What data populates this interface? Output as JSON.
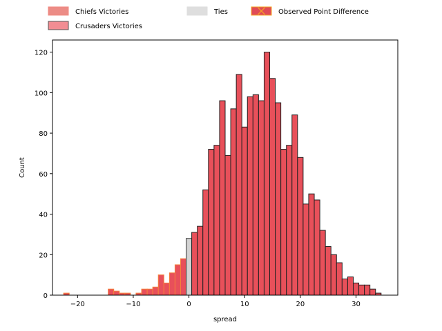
{
  "chart_data": {
    "type": "bar",
    "xlabel": "spread",
    "ylabel": "Count",
    "xlim": [
      -24.5,
      37.5
    ],
    "ylim": [
      0,
      126
    ],
    "xticks": [
      -20,
      -10,
      0,
      10,
      20,
      30
    ],
    "yticks": [
      0,
      20,
      40,
      60,
      80,
      100,
      120
    ],
    "legend": {
      "placement": "top",
      "entries": [
        {
          "label": "Chiefs Victories",
          "fill": "#ec8c86",
          "edge": "#f08a80",
          "marker": "none"
        },
        {
          "label": "Crusaders Victories",
          "fill": "#f28d93",
          "edge": "#555555",
          "marker": "none"
        },
        {
          "label": "Ties",
          "fill": "#dedede",
          "edge": "#dedede",
          "marker": "none"
        },
        {
          "label": "Observed Point Difference",
          "fill": "#e04b55",
          "edge": "#f5a623",
          "marker": "x"
        }
      ]
    },
    "bin_width": 1,
    "series": [
      {
        "name": "Chiefs Victories",
        "fill": "#e8505a",
        "edge": "#f5823c",
        "bins": [
          {
            "x": -22,
            "count": 1
          },
          {
            "x": -14,
            "count": 3
          },
          {
            "x": -13,
            "count": 2
          },
          {
            "x": -12,
            "count": 1
          },
          {
            "x": -11,
            "count": 1
          },
          {
            "x": -9,
            "count": 1
          },
          {
            "x": -8,
            "count": 3
          },
          {
            "x": -7,
            "count": 3
          },
          {
            "x": -6,
            "count": 4
          },
          {
            "x": -5,
            "count": 10
          },
          {
            "x": -4,
            "count": 6
          },
          {
            "x": -3,
            "count": 11
          },
          {
            "x": -2,
            "count": 15
          },
          {
            "x": -1,
            "count": 18
          }
        ]
      },
      {
        "name": "Ties",
        "fill": "#d3d3d3",
        "edge": "#333333",
        "bins": [
          {
            "x": 0,
            "count": 28
          }
        ]
      },
      {
        "name": "Crusaders Victories",
        "fill": "#e8505a",
        "edge": "#222222",
        "bins": [
          {
            "x": 1,
            "count": 31
          },
          {
            "x": 2,
            "count": 34
          },
          {
            "x": 3,
            "count": 52
          },
          {
            "x": 4,
            "count": 72
          },
          {
            "x": 5,
            "count": 74
          },
          {
            "x": 6,
            "count": 96
          },
          {
            "x": 7,
            "count": 69
          },
          {
            "x": 8,
            "count": 92
          },
          {
            "x": 9,
            "count": 109
          },
          {
            "x": 10,
            "count": 83
          },
          {
            "x": 11,
            "count": 98
          },
          {
            "x": 12,
            "count": 99
          },
          {
            "x": 13,
            "count": 96
          },
          {
            "x": 14,
            "count": 120
          },
          {
            "x": 15,
            "count": 107
          },
          {
            "x": 16,
            "count": 95
          },
          {
            "x": 17,
            "count": 72
          },
          {
            "x": 18,
            "count": 74
          },
          {
            "x": 19,
            "count": 89
          },
          {
            "x": 20,
            "count": 68
          },
          {
            "x": 21,
            "count": 45
          },
          {
            "x": 22,
            "count": 50
          },
          {
            "x": 23,
            "count": 47
          },
          {
            "x": 24,
            "count": 32
          },
          {
            "x": 25,
            "count": 24
          },
          {
            "x": 26,
            "count": 20
          },
          {
            "x": 27,
            "count": 16
          },
          {
            "x": 28,
            "count": 8
          },
          {
            "x": 29,
            "count": 9
          },
          {
            "x": 30,
            "count": 6
          },
          {
            "x": 31,
            "count": 5
          },
          {
            "x": 32,
            "count": 5
          },
          {
            "x": 33,
            "count": 3
          },
          {
            "x": 34,
            "count": 1
          }
        ]
      }
    ]
  }
}
